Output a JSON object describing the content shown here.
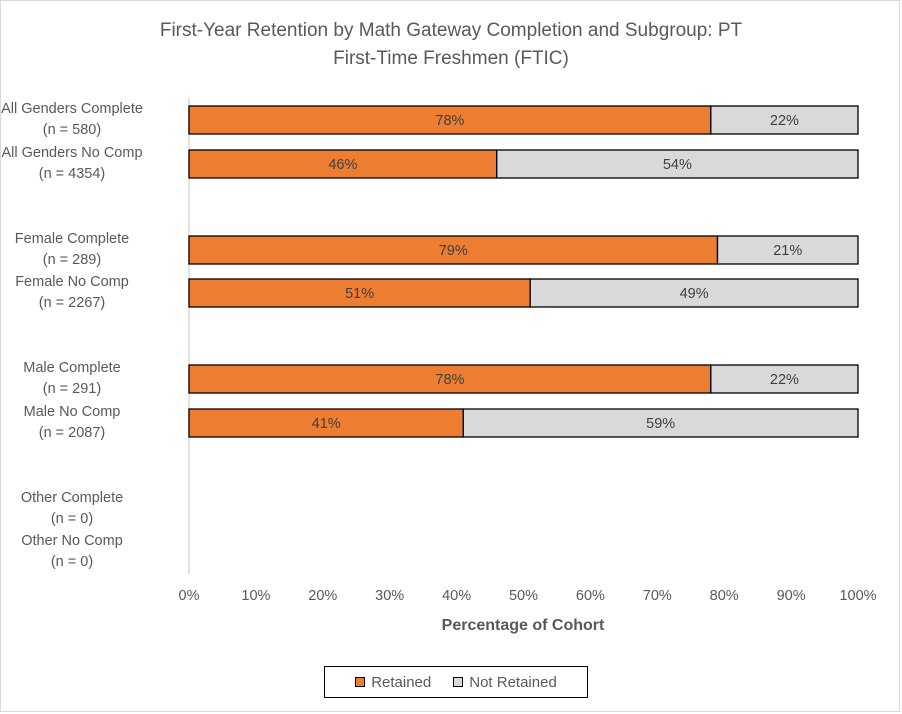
{
  "chart_data": {
    "type": "bar",
    "orientation": "horizontal",
    "stacked": "percent",
    "title": [
      "First-Year Retention by Math Gateway Completion and Subgroup: PT",
      "First-Time Freshmen (FTIC)"
    ],
    "xlabel": "Percentage of Cohort",
    "ylabel": "",
    "xlim": [
      0,
      100
    ],
    "x_ticks": [
      "0%",
      "10%",
      "20%",
      "30%",
      "40%",
      "50%",
      "60%",
      "70%",
      "80%",
      "90%",
      "100%"
    ],
    "categories": [
      {
        "name": "All Genders Complete",
        "n": "(n = 580)"
      },
      {
        "name": "All Genders No Comp",
        "n": "(n = 4354)"
      },
      {
        "name": "Female Complete",
        "n": "(n = 289)"
      },
      {
        "name": "Female No Comp",
        "n": "(n = 2267)"
      },
      {
        "name": "Male Complete",
        "n": "(n = 291)"
      },
      {
        "name": "Male No Comp",
        "n": "(n = 2087)"
      },
      {
        "name": "Other Complete",
        "n": "(n = 0)"
      },
      {
        "name": "Other No Comp",
        "n": "(n = 0)"
      }
    ],
    "series": [
      {
        "name": "Retained",
        "color": "#ed7d31",
        "values": [
          78,
          46,
          79,
          51,
          78,
          41,
          null,
          null
        ],
        "labels": [
          "78%",
          "46%",
          "79%",
          "51%",
          "78%",
          "41%",
          null,
          null
        ]
      },
      {
        "name": "Not Retained",
        "color": "#d9d9d9",
        "values": [
          22,
          54,
          21,
          49,
          22,
          59,
          null,
          null
        ],
        "labels": [
          "22%",
          "54%",
          "21%",
          "49%",
          "22%",
          "59%",
          null,
          null
        ]
      }
    ],
    "grid": false,
    "legend": "bottom"
  }
}
